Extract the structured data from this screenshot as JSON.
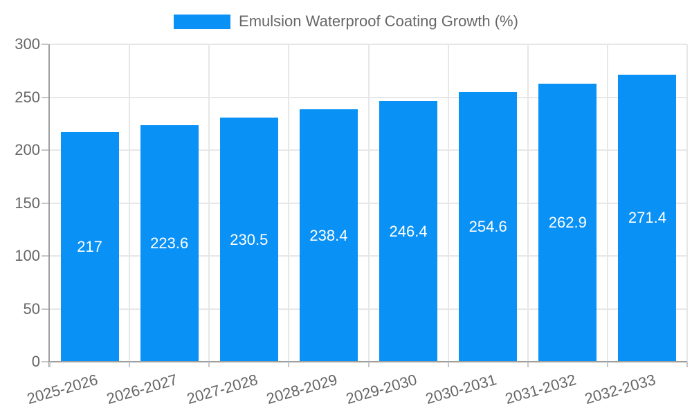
{
  "legend": {
    "label": "Emulsion Waterproof Coating Growth (%)"
  },
  "chart_data": {
    "type": "bar",
    "title": "Emulsion Waterproof Coating Growth (%)",
    "categories": [
      "2025-2026",
      "2026-2027",
      "2027-2028",
      "2028-2029",
      "2029-2030",
      "2030-2031",
      "2031-2032",
      "2032-2033"
    ],
    "values": [
      217,
      223.6,
      230.5,
      238.4,
      246.4,
      254.6,
      262.9,
      271.4
    ],
    "value_labels": [
      "217",
      "223.6",
      "230.5",
      "238.4",
      "246.4",
      "254.6",
      "262.9",
      "271.4"
    ],
    "xlabel": "",
    "ylabel": "",
    "ylim": [
      0,
      300
    ],
    "yticks": [
      0,
      50,
      100,
      150,
      200,
      250,
      300
    ],
    "grid": true,
    "legend_position": "top",
    "colors": {
      "bar": "#0a91f5",
      "bar_label": "#ffffff",
      "axis_text": "#666666",
      "axis_line": "#9e9e9e",
      "gridline": "#e7e7e7",
      "tick": "#c6c6c6",
      "background": "#ffffff"
    }
  }
}
